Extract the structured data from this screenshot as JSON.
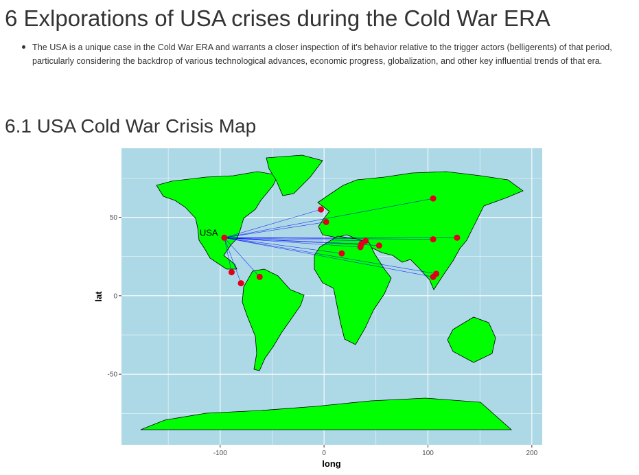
{
  "section6": {
    "title": "6 Exlporations of USA crises during the Cold War ERA",
    "bullets": [
      "The USA is a unique case in the Cold War ERA and warrants a closer inspection of it's behavior relative to the trigger actors (belligerents) of that period, particularly considering the backdrop of various technological advances, economic progress, globalization, and other key influential trends of that era."
    ]
  },
  "section61": {
    "title": "6.1 USA Cold War Crisis Map"
  },
  "colors": {
    "ocean": "#add8e6",
    "land": "#00ff00",
    "border": "#000000",
    "line": "#0000ff",
    "point": "#e0001a",
    "grid": "#ffffff"
  },
  "chart_data": {
    "type": "scatter",
    "xlabel": "long",
    "ylabel": "lat",
    "xlim": [
      -195,
      210
    ],
    "ylim": [
      -95,
      94
    ],
    "xticks": [
      -100,
      0,
      100,
      200
    ],
    "xtick_labels": [
      "-100",
      "0",
      "100",
      "200"
    ],
    "yticks": [
      -50,
      0,
      50
    ],
    "ytick_labels": [
      "-50",
      "0",
      "50"
    ],
    "grid": true,
    "origin": {
      "label": "USA",
      "long": -96,
      "lat": 37
    },
    "points": [
      {
        "long": -3,
        "lat": 55
      },
      {
        "long": 2,
        "lat": 47
      },
      {
        "long": 105,
        "lat": 62
      },
      {
        "long": 128,
        "lat": 37
      },
      {
        "long": 105,
        "lat": 36
      },
      {
        "long": 40,
        "lat": 35
      },
      {
        "long": 36,
        "lat": 33
      },
      {
        "long": 35,
        "lat": 31
      },
      {
        "long": 53,
        "lat": 32
      },
      {
        "long": 17,
        "lat": 27
      },
      {
        "long": 108,
        "lat": 14
      },
      {
        "long": 105,
        "lat": 12
      },
      {
        "long": -89,
        "lat": 15
      },
      {
        "long": -80,
        "lat": 8
      },
      {
        "long": -62,
        "lat": 12
      }
    ]
  }
}
